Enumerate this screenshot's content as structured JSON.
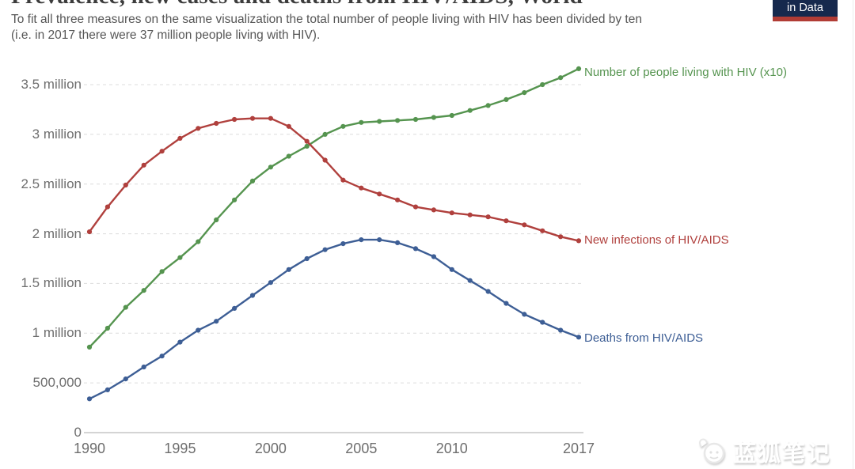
{
  "header": {
    "title": "Prevalence, new cases and deaths from HIV/AIDS, World",
    "subtitle_lines": [
      "To fit all three measures on the same visualization the total number of people living with HIV has been divided by ten",
      "(i.e. in 2017 there were 37 million people living with HIV)."
    ],
    "logo": {
      "text": "in Data",
      "bg_color": "#16294d",
      "bar_color": "#b13c35"
    }
  },
  "watermark": {
    "text": "蓝狐笔记",
    "icon": "fox-logo-icon"
  },
  "chart_data": {
    "type": "line",
    "title": "Prevalence, new cases and deaths from HIV/AIDS, World",
    "xlabel": "",
    "ylabel": "",
    "unit": "million people (per year / at one time)",
    "grid": "horizontal dashed",
    "legend_position": "right of line ends",
    "ylim": [
      0,
      3.7
    ],
    "x": [
      1990,
      1991,
      1992,
      1993,
      1994,
      1995,
      1996,
      1997,
      1998,
      1999,
      2000,
      2001,
      2002,
      2003,
      2004,
      2005,
      2006,
      2007,
      2008,
      2009,
      2010,
      2011,
      2012,
      2013,
      2014,
      2015,
      2016,
      2017
    ],
    "xticks": [
      1990,
      1995,
      2000,
      2005,
      2010,
      2017
    ],
    "yticks": [
      {
        "value": 0,
        "label": "0"
      },
      {
        "value": 0.5,
        "label": "500,000"
      },
      {
        "value": 1,
        "label": "1 million"
      },
      {
        "value": 1.5,
        "label": "1.5 million"
      },
      {
        "value": 2,
        "label": "2 million"
      },
      {
        "value": 2.5,
        "label": "2.5 million"
      },
      {
        "value": 3,
        "label": "3 million"
      },
      {
        "value": 3.5,
        "label": "3.5 million"
      }
    ],
    "series": [
      {
        "name": "Number of people living with HIV (x10)",
        "color": "#55944f",
        "values": [
          0.86,
          1.05,
          1.26,
          1.43,
          1.62,
          1.76,
          1.92,
          2.14,
          2.34,
          2.53,
          2.67,
          2.78,
          2.88,
          3.0,
          3.08,
          3.12,
          3.13,
          3.14,
          3.15,
          3.17,
          3.19,
          3.24,
          3.29,
          3.35,
          3.42,
          3.5,
          3.57,
          3.66
        ]
      },
      {
        "name": "New infections of HIV/AIDS",
        "color": "#b0403d",
        "values": [
          2.02,
          2.27,
          2.49,
          2.69,
          2.83,
          2.96,
          3.06,
          3.11,
          3.15,
          3.16,
          3.16,
          3.08,
          2.93,
          2.74,
          2.54,
          2.46,
          2.4,
          2.34,
          2.27,
          2.24,
          2.21,
          2.19,
          2.17,
          2.13,
          2.09,
          2.03,
          1.97,
          1.93
        ]
      },
      {
        "name": "Deaths from HIV/AIDS",
        "color": "#3d5e95",
        "values": [
          0.34,
          0.43,
          0.54,
          0.66,
          0.77,
          0.91,
          1.03,
          1.12,
          1.25,
          1.38,
          1.51,
          1.64,
          1.75,
          1.84,
          1.9,
          1.94,
          1.94,
          1.91,
          1.85,
          1.77,
          1.64,
          1.53,
          1.42,
          1.3,
          1.19,
          1.11,
          1.03,
          0.96
        ]
      }
    ]
  }
}
